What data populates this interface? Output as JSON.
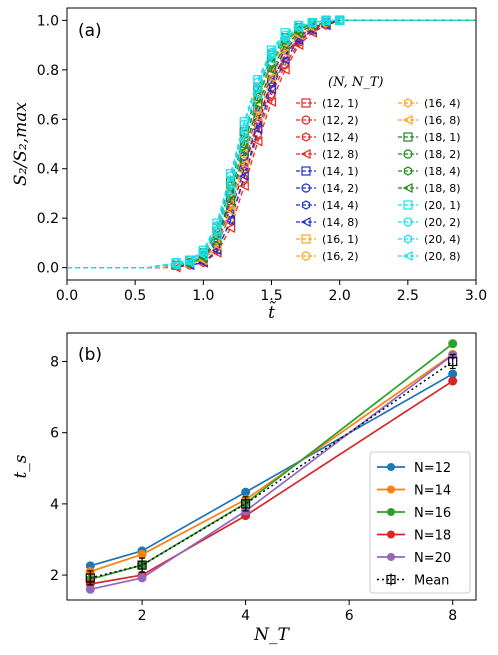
{
  "chart_data": [
    {
      "type": "line",
      "panel_label": "(a)",
      "xlabel": "t̃",
      "ylabel": "S₂/S₂,max",
      "xlim": [
        0.0,
        3.0
      ],
      "ylim": [
        -0.05,
        1.05
      ],
      "xticks": [
        "0.0",
        "0.5",
        "1.0",
        "1.5",
        "2.0",
        "2.5",
        "3.0"
      ],
      "yticks": [
        "0.0",
        "0.2",
        "0.4",
        "0.6",
        "0.8",
        "1.0"
      ],
      "legend_title": "(N, N_T)",
      "legend_position": "right",
      "x": [
        0.0,
        0.1,
        0.2,
        0.3,
        0.4,
        0.5,
        0.6,
        0.7,
        0.8,
        0.9,
        1.0,
        1.1,
        1.2,
        1.3,
        1.4,
        1.5,
        1.6,
        1.7,
        1.8,
        1.9,
        2.0,
        2.1,
        2.2,
        2.3,
        2.4,
        2.5,
        2.6,
        2.7,
        2.8,
        2.9,
        3.0
      ],
      "series": [
        {
          "name": "(12, 1)",
          "color": "#e8281e",
          "marker": "square",
          "values": [
            0,
            0,
            0,
            0,
            0,
            0,
            0,
            0.01,
            0.01,
            0.02,
            0.04,
            0.1,
            0.24,
            0.42,
            0.6,
            0.75,
            0.86,
            0.93,
            0.97,
            0.99,
            1,
            1,
            1,
            1,
            1,
            1,
            1,
            1,
            1,
            1,
            1
          ]
        },
        {
          "name": "(12, 2)",
          "color": "#e8281e",
          "marker": "circle",
          "values": [
            0,
            0,
            0,
            0,
            0,
            0,
            0,
            0.01,
            0.01,
            0.02,
            0.03,
            0.09,
            0.22,
            0.4,
            0.58,
            0.73,
            0.85,
            0.92,
            0.96,
            0.99,
            1,
            1,
            1,
            1,
            1,
            1,
            1,
            1,
            1,
            1,
            1
          ]
        },
        {
          "name": "(12, 4)",
          "color": "#e8281e",
          "marker": "hexagon",
          "values": [
            0,
            0,
            0,
            0,
            0,
            0,
            0,
            0,
            0.01,
            0.01,
            0.02,
            0.07,
            0.19,
            0.36,
            0.54,
            0.7,
            0.82,
            0.91,
            0.96,
            0.98,
            1,
            1,
            1,
            1,
            1,
            1,
            1,
            1,
            1,
            1,
            1
          ]
        },
        {
          "name": "(12, 8)",
          "color": "#e8281e",
          "marker": "tri_left",
          "values": [
            0,
            0,
            0,
            0,
            0,
            0,
            0,
            0,
            0,
            0.01,
            0.02,
            0.06,
            0.16,
            0.33,
            0.51,
            0.67,
            0.8,
            0.9,
            0.95,
            0.98,
            1,
            1,
            1,
            1,
            1,
            1,
            1,
            1,
            1,
            1,
            1
          ]
        },
        {
          "name": "(14, 1)",
          "color": "#1f2fd4",
          "marker": "square",
          "values": [
            0,
            0,
            0,
            0,
            0,
            0,
            0,
            0.01,
            0.01,
            0.02,
            0.04,
            0.12,
            0.28,
            0.47,
            0.65,
            0.79,
            0.89,
            0.95,
            0.98,
            0.99,
            1,
            1,
            1,
            1,
            1,
            1,
            1,
            1,
            1,
            1,
            1
          ]
        },
        {
          "name": "(14, 2)",
          "color": "#1f2fd4",
          "marker": "circle",
          "values": [
            0,
            0,
            0,
            0,
            0,
            0,
            0,
            0.01,
            0.01,
            0.02,
            0.04,
            0.11,
            0.26,
            0.45,
            0.63,
            0.78,
            0.88,
            0.94,
            0.97,
            0.99,
            1,
            1,
            1,
            1,
            1,
            1,
            1,
            1,
            1,
            1,
            1
          ]
        },
        {
          "name": "(14, 4)",
          "color": "#1f2fd4",
          "marker": "hexagon",
          "values": [
            0,
            0,
            0,
            0,
            0,
            0,
            0,
            0,
            0.01,
            0.02,
            0.03,
            0.09,
            0.22,
            0.41,
            0.59,
            0.75,
            0.86,
            0.93,
            0.97,
            0.99,
            1,
            1,
            1,
            1,
            1,
            1,
            1,
            1,
            1,
            1,
            1
          ]
        },
        {
          "name": "(14, 8)",
          "color": "#1f2fd4",
          "marker": "tri_left",
          "values": [
            0,
            0,
            0,
            0,
            0,
            0,
            0,
            0,
            0.01,
            0.01,
            0.02,
            0.07,
            0.19,
            0.37,
            0.56,
            0.72,
            0.84,
            0.92,
            0.96,
            0.98,
            1,
            1,
            1,
            1,
            1,
            1,
            1,
            1,
            1,
            1,
            1
          ]
        },
        {
          "name": "(16, 1)",
          "color": "#ffa51a",
          "marker": "square",
          "values": [
            0,
            0,
            0,
            0,
            0,
            0,
            0,
            0.01,
            0.01,
            0.02,
            0.05,
            0.14,
            0.31,
            0.51,
            0.69,
            0.83,
            0.92,
            0.96,
            0.99,
            1,
            1,
            1,
            1,
            1,
            1,
            1,
            1,
            1,
            1,
            1,
            1
          ]
        },
        {
          "name": "(16, 2)",
          "color": "#ffa51a",
          "marker": "circle",
          "values": [
            0,
            0,
            0,
            0,
            0,
            0,
            0,
            0.01,
            0.01,
            0.02,
            0.05,
            0.13,
            0.3,
            0.5,
            0.68,
            0.82,
            0.91,
            0.96,
            0.98,
            0.99,
            1,
            1,
            1,
            1,
            1,
            1,
            1,
            1,
            1,
            1,
            1
          ]
        },
        {
          "name": "(16, 4)",
          "color": "#ffa51a",
          "marker": "hexagon",
          "values": [
            0,
            0,
            0,
            0,
            0,
            0,
            0,
            0.01,
            0.01,
            0.02,
            0.04,
            0.11,
            0.26,
            0.46,
            0.64,
            0.79,
            0.89,
            0.95,
            0.98,
            0.99,
            1,
            1,
            1,
            1,
            1,
            1,
            1,
            1,
            1,
            1,
            1
          ]
        },
        {
          "name": "(16, 8)",
          "color": "#ffa51a",
          "marker": "tri_left",
          "values": [
            0,
            0,
            0,
            0,
            0,
            0,
            0,
            0,
            0.01,
            0.02,
            0.03,
            0.09,
            0.23,
            0.42,
            0.61,
            0.77,
            0.87,
            0.94,
            0.97,
            0.99,
            1,
            1,
            1,
            1,
            1,
            1,
            1,
            1,
            1,
            1,
            1
          ]
        },
        {
          "name": "(18, 1)",
          "color": "#1d8a1d",
          "marker": "square",
          "values": [
            0,
            0,
            0,
            0,
            0,
            0,
            0,
            0.01,
            0.01,
            0.03,
            0.06,
            0.16,
            0.35,
            0.55,
            0.73,
            0.86,
            0.93,
            0.97,
            0.99,
            1,
            1,
            1,
            1,
            1,
            1,
            1,
            1,
            1,
            1,
            1,
            1
          ]
        },
        {
          "name": "(18, 2)",
          "color": "#1d8a1d",
          "marker": "circle",
          "values": [
            0,
            0,
            0,
            0,
            0,
            0,
            0,
            0.01,
            0.01,
            0.02,
            0.05,
            0.15,
            0.33,
            0.54,
            0.72,
            0.85,
            0.93,
            0.97,
            0.99,
            1,
            1,
            1,
            1,
            1,
            1,
            1,
            1,
            1,
            1,
            1,
            1
          ]
        },
        {
          "name": "(18, 4)",
          "color": "#1d8a1d",
          "marker": "hexagon",
          "values": [
            0,
            0,
            0,
            0,
            0,
            0,
            0,
            0.01,
            0.01,
            0.02,
            0.05,
            0.13,
            0.3,
            0.5,
            0.69,
            0.83,
            0.92,
            0.96,
            0.99,
            1,
            1,
            1,
            1,
            1,
            1,
            1,
            1,
            1,
            1,
            1,
            1
          ]
        },
        {
          "name": "(18, 8)",
          "color": "#1d8a1d",
          "marker": "tri_left",
          "values": [
            0,
            0,
            0,
            0,
            0,
            0,
            0,
            0.01,
            0.01,
            0.02,
            0.04,
            0.11,
            0.27,
            0.47,
            0.66,
            0.8,
            0.9,
            0.95,
            0.98,
            0.99,
            1,
            1,
            1,
            1,
            1,
            1,
            1,
            1,
            1,
            1,
            1
          ]
        },
        {
          "name": "(20, 1)",
          "color": "#16e0f0",
          "marker": "square",
          "values": [
            0,
            0,
            0,
            0,
            0,
            0,
            0,
            0.01,
            0.02,
            0.03,
            0.07,
            0.18,
            0.38,
            0.59,
            0.76,
            0.88,
            0.95,
            0.98,
            0.99,
            1,
            1,
            1,
            1,
            1,
            1,
            1,
            1,
            1,
            1,
            1,
            1
          ]
        },
        {
          "name": "(20, 2)",
          "color": "#16e0f0",
          "marker": "circle",
          "values": [
            0,
            0,
            0,
            0,
            0,
            0,
            0,
            0.01,
            0.02,
            0.03,
            0.06,
            0.17,
            0.37,
            0.58,
            0.75,
            0.87,
            0.94,
            0.98,
            0.99,
            1,
            1,
            1,
            1,
            1,
            1,
            1,
            1,
            1,
            1,
            1,
            1
          ]
        },
        {
          "name": "(20, 4)",
          "color": "#16e0f0",
          "marker": "hexagon",
          "values": [
            0,
            0,
            0,
            0,
            0,
            0,
            0,
            0.01,
            0.01,
            0.03,
            0.06,
            0.15,
            0.34,
            0.55,
            0.73,
            0.86,
            0.93,
            0.97,
            0.99,
            1,
            1,
            1,
            1,
            1,
            1,
            1,
            1,
            1,
            1,
            1,
            1
          ]
        },
        {
          "name": "(20, 8)",
          "color": "#16e0f0",
          "marker": "tri_left",
          "values": [
            0,
            0,
            0,
            0,
            0,
            0,
            0,
            0.01,
            0.01,
            0.02,
            0.05,
            0.13,
            0.31,
            0.52,
            0.7,
            0.84,
            0.92,
            0.97,
            0.99,
            1,
            1,
            1,
            1,
            1,
            1,
            1,
            1,
            1,
            1,
            1,
            1
          ]
        }
      ]
    },
    {
      "type": "line",
      "panel_label": "(b)",
      "xlabel": "N_T",
      "ylabel": "t_s",
      "xlim": [
        0.55,
        8.45
      ],
      "ylim": [
        1.3,
        8.8
      ],
      "xticks": [
        "2",
        "4",
        "6",
        "8"
      ],
      "yticks": [
        "2",
        "4",
        "6",
        "8"
      ],
      "legend_position": "lower-right",
      "x": [
        1,
        2,
        4,
        8
      ],
      "series": [
        {
          "name": "N=12",
          "color": "#1f77b4",
          "marker": "circle",
          "values": [
            2.26,
            2.68,
            4.33,
            7.65
          ]
        },
        {
          "name": "N=14",
          "color": "#ff7f0e",
          "marker": "circle",
          "values": [
            2.1,
            2.58,
            4.12,
            8.2
          ]
        },
        {
          "name": "N=16",
          "color": "#2ca02c",
          "marker": "circle",
          "values": [
            1.88,
            2.28,
            4.02,
            8.5
          ]
        },
        {
          "name": "N=18",
          "color": "#d62728",
          "marker": "circle",
          "values": [
            1.75,
            2.0,
            3.67,
            7.45
          ]
        },
        {
          "name": "N=20",
          "color": "#9467bd",
          "marker": "circle",
          "values": [
            1.6,
            1.92,
            3.8,
            8.18
          ]
        },
        {
          "name": "Mean",
          "color": "#000000",
          "marker": "errorbar-square",
          "linestyle": "dotted",
          "values": [
            1.92,
            2.28,
            4.0,
            8.0
          ]
        }
      ]
    }
  ]
}
